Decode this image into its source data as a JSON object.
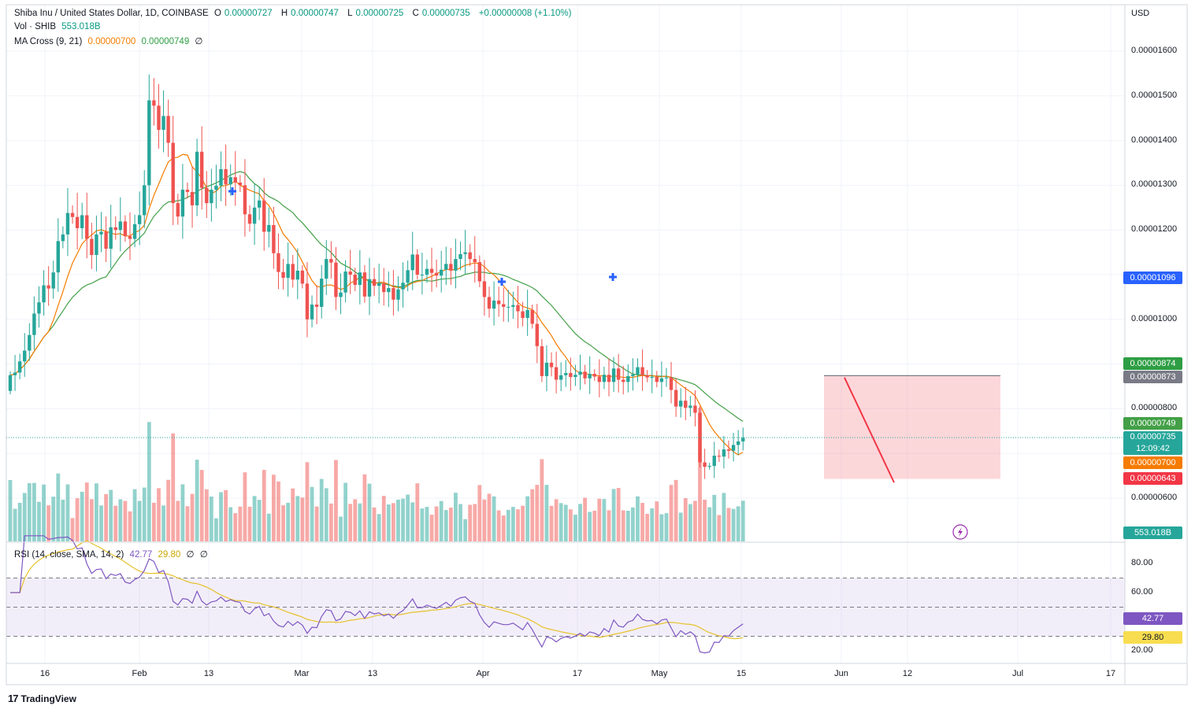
{
  "header": {
    "symbol": "Shiba Inu / United States Dollar, 1D, COINBASE",
    "open_label": "O",
    "open": "0.00000727",
    "high_label": "H",
    "high": "0.00000747",
    "low_label": "L",
    "low": "0.00000725",
    "close_label": "C",
    "close": "0.00000735",
    "change": "+0.00000008 (+1.10%)",
    "currency": "USD"
  },
  "volume_legend": {
    "label": "Vol · SHIB",
    "value": "553.018B"
  },
  "ma_legend": {
    "label": "MA Cross (9, 21)",
    "fast": "0.00000700",
    "slow": "0.00000749",
    "eye": "∅"
  },
  "rsi_legend": {
    "label": "RSI (14, close, SMA, 14, 2)",
    "rsi": "42.77",
    "sma": "29.80",
    "eye1": "∅",
    "eye2": "∅"
  },
  "price_tags": {
    "alert": "0.00001096",
    "top_box": "0.00000874",
    "top_box2": "0.00000873",
    "slow_ma": "0.00000749",
    "last": "0.00000735",
    "countdown": "12:09:42",
    "fast_ma": "0.00000700",
    "bottom_box": "0.00000643",
    "volume": "553.018B",
    "rsi": "42.77",
    "rsi_sma": "29.80"
  },
  "price_axis_labels": [
    "0.00001600",
    "0.00001500",
    "0.00001400",
    "0.00001300",
    "0.00001200",
    "0.00001000",
    "0.00000800",
    "0.00000600"
  ],
  "rsi_axis_labels": [
    "80.00",
    "60.00",
    "20.00"
  ],
  "time_axis_labels": [
    "16",
    "Feb",
    "13",
    "Mar",
    "13",
    "Apr",
    "17",
    "May",
    "15",
    "Jun",
    "12",
    "Jul",
    "17"
  ],
  "brand": "TradingView",
  "colors": {
    "up": "#26a69a",
    "down": "#ef5350",
    "fast_ma": "#f57c00",
    "slow_ma": "#43a047",
    "rsi": "#7e57c2",
    "rsi_sma": "#e6c12b",
    "alert": "#2962ff"
  },
  "chart_data": {
    "type": "candlestick",
    "x_start": "2023-01-05",
    "x_end": "2023-06-21",
    "ylim": [
      5.5e-06,
      1.71e-05
    ],
    "candles_close": [
      8.75e-06,
      8.81e-06,
      9.06e-06,
      9.3e-06,
      9.65e-06,
      1.013e-05,
      1.038e-05,
      1.076e-05,
      1.069e-05,
      1.105e-05,
      1.175e-05,
      1.19e-05,
      1.238e-05,
      1.229e-05,
      1.204e-05,
      1.233e-05,
      1.18e-05,
      1.144e-05,
      1.19e-05,
      1.196e-05,
      1.158e-05,
      1.206e-05,
      1.2e-05,
      1.219e-05,
      1.186e-05,
      1.18e-05,
      1.213e-05,
      1.233e-05,
      1.3e-05,
      1.49e-05,
      1.478e-05,
      1.424e-05,
      1.455e-05,
      1.395e-05,
      1.26e-05,
      1.23e-05,
      1.29e-05,
      1.285e-05,
      1.255e-05,
      1.375e-05,
      1.294e-05,
      1.26e-05,
      1.29e-05,
      1.299e-05,
      1.336e-05,
      1.302e-05,
      1.318e-05,
      1.306e-05,
      1.3e-05,
      1.235e-05,
      1.214e-05,
      1.25e-05,
      1.266e-05,
      1.196e-05,
      1.211e-05,
      1.148e-05,
      1.106e-05,
      1.093e-05,
      1.124e-05,
      1.089e-05,
      1.109e-05,
      1.08e-05,
      1e-05,
      1.033e-05,
      1.028e-05,
      1.091e-05,
      1.135e-05,
      1.127e-05,
      1.05e-05,
      1.06e-05,
      1.107e-05,
      1.1e-05,
      1.077e-05,
      1.105e-05,
      1.051e-05,
      1.09e-05,
      1.075e-05,
      1.081e-05,
      1.061e-05,
      1.07e-05,
      1.044e-05,
      1.067e-05,
      1.082e-05,
      1.11e-05,
      1.145e-05,
      1.1e-05,
      1.1e-05,
      1.113e-05,
      1.104e-05,
      1.098e-05,
      1.111e-05,
      1.124e-05,
      1.109e-05,
      1.135e-05,
      1.146e-05,
      1.15e-05,
      1.135e-05,
      1.128e-05,
      1.085e-05,
      1.05e-05,
      1.024e-05,
      1.042e-05,
      1.034e-05,
      1.028e-05,
      1.028e-05,
      1.032e-05,
      1.018e-05,
      1.003e-05,
      1.021e-05,
      9.9e-06,
      9.4e-06,
      8.73e-06,
      9.03e-06,
      8.93e-06,
      8.65e-06,
      8.75e-06,
      8.8e-06,
      8.71e-06,
      8.76e-06,
      8.83e-06,
      8.68e-06,
      8.78e-06,
      8.72e-06,
      8.6e-06,
      8.76e-06,
      8.6e-06,
      8.9e-06,
      8.65e-06,
      8.6e-06,
      8.73e-06,
      8.77e-06,
      8.93e-06,
      8.75e-06,
      8.7e-06,
      8.71e-06,
      8.6e-06,
      8.68e-06,
      8.7e-06,
      8.42e-06,
      8.05e-06,
      8.18e-06,
      8.02e-06,
      8.07e-06,
      7.91e-06,
      6.8e-06,
      6.7e-06,
      6.72e-06,
      6.95e-06,
      6.93e-06,
      7.09e-06,
      7.06e-06,
      7.19e-06,
      7.27e-06,
      7.35e-06
    ]
  }
}
